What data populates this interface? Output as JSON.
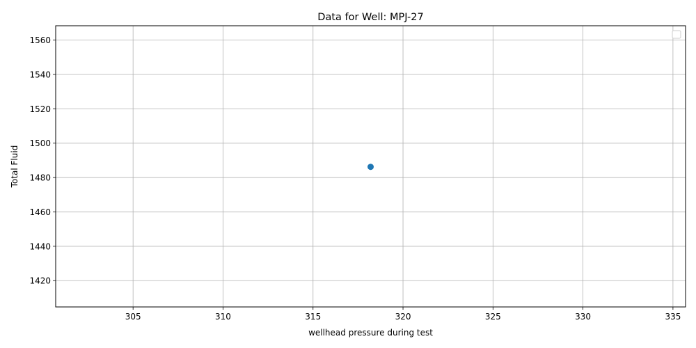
{
  "chart_data": {
    "type": "scatter",
    "title": "Data for Well: MPJ-27",
    "xlabel": "wellhead pressure during test",
    "ylabel": "Total Fluid",
    "xlim": [
      300.7,
      335.7
    ],
    "ylim": [
      1404.7,
      1568.3
    ],
    "x_ticks": [
      305,
      310,
      315,
      320,
      325,
      330,
      335
    ],
    "y_ticks": [
      1420,
      1440,
      1460,
      1480,
      1500,
      1520,
      1540,
      1560
    ],
    "grid": true,
    "legend": "top-right",
    "points": [
      {
        "x": 318.2,
        "y": 1486.2
      }
    ],
    "colors": {
      "marker": "#1f77b4",
      "grid": "#b0b0b0",
      "axes": "#000000"
    }
  }
}
